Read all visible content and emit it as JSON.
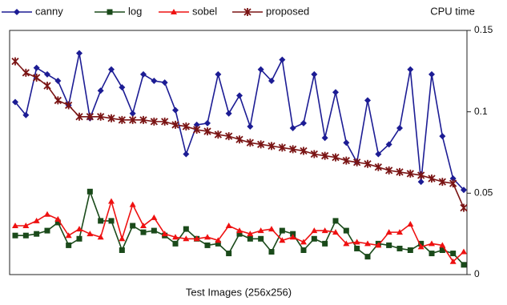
{
  "chart_data": {
    "type": "line",
    "x_label": "Test Images (256x256)",
    "y_label": "CPU time",
    "ylim": [
      0,
      0.15
    ],
    "yticks": [
      0,
      0.05,
      0.1,
      0.15
    ],
    "y_axis_side": "right",
    "grid": false,
    "legend": "top",
    "series": [
      {
        "name": "canny",
        "color": "#1c1c94",
        "marker": "diamond",
        "values": [
          0.106,
          0.098,
          0.127,
          0.123,
          0.119,
          0.104,
          0.136,
          0.096,
          0.113,
          0.126,
          0.115,
          0.099,
          0.123,
          0.119,
          0.118,
          0.101,
          0.074,
          0.092,
          0.093,
          0.123,
          0.099,
          0.11,
          0.091,
          0.126,
          0.119,
          0.132,
          0.09,
          0.093,
          0.123,
          0.084,
          0.112,
          0.081,
          0.069,
          0.107,
          0.074,
          0.08,
          0.09,
          0.126,
          0.057,
          0.123,
          0.085,
          0.059,
          0.052
        ]
      },
      {
        "name": "log",
        "color": "#1a4a1a",
        "marker": "square",
        "values": [
          0.024,
          0.024,
          0.025,
          0.027,
          0.032,
          0.018,
          0.022,
          0.051,
          0.033,
          0.033,
          0.015,
          0.03,
          0.026,
          0.027,
          0.024,
          0.019,
          0.028,
          0.022,
          0.018,
          0.019,
          0.013,
          0.025,
          0.022,
          0.022,
          0.014,
          0.027,
          0.025,
          0.015,
          0.022,
          0.019,
          0.033,
          0.027,
          0.016,
          0.011,
          0.019,
          0.018,
          0.016,
          0.015,
          0.019,
          0.013,
          0.015,
          0.013,
          0.006
        ]
      },
      {
        "name": "sobel",
        "color": "#ee1111",
        "marker": "triangle",
        "values": [
          0.03,
          0.03,
          0.033,
          0.037,
          0.034,
          0.024,
          0.028,
          0.025,
          0.023,
          0.045,
          0.022,
          0.043,
          0.03,
          0.035,
          0.025,
          0.023,
          0.022,
          0.022,
          0.023,
          0.021,
          0.03,
          0.027,
          0.025,
          0.027,
          0.028,
          0.021,
          0.023,
          0.02,
          0.027,
          0.027,
          0.026,
          0.019,
          0.02,
          0.019,
          0.018,
          0.026,
          0.026,
          0.031,
          0.017,
          0.019,
          0.018,
          0.008,
          0.014
        ]
      },
      {
        "name": "proposed",
        "color": "#7a1414",
        "marker": "star",
        "values": [
          0.131,
          0.124,
          0.121,
          0.116,
          0.107,
          0.104,
          0.097,
          0.097,
          0.097,
          0.096,
          0.095,
          0.095,
          0.095,
          0.094,
          0.094,
          0.092,
          0.091,
          0.089,
          0.088,
          0.086,
          0.085,
          0.083,
          0.081,
          0.08,
          0.079,
          0.078,
          0.077,
          0.076,
          0.074,
          0.073,
          0.072,
          0.07,
          0.069,
          0.068,
          0.066,
          0.064,
          0.063,
          0.062,
          0.061,
          0.059,
          0.057,
          0.056,
          0.041
        ]
      }
    ]
  }
}
